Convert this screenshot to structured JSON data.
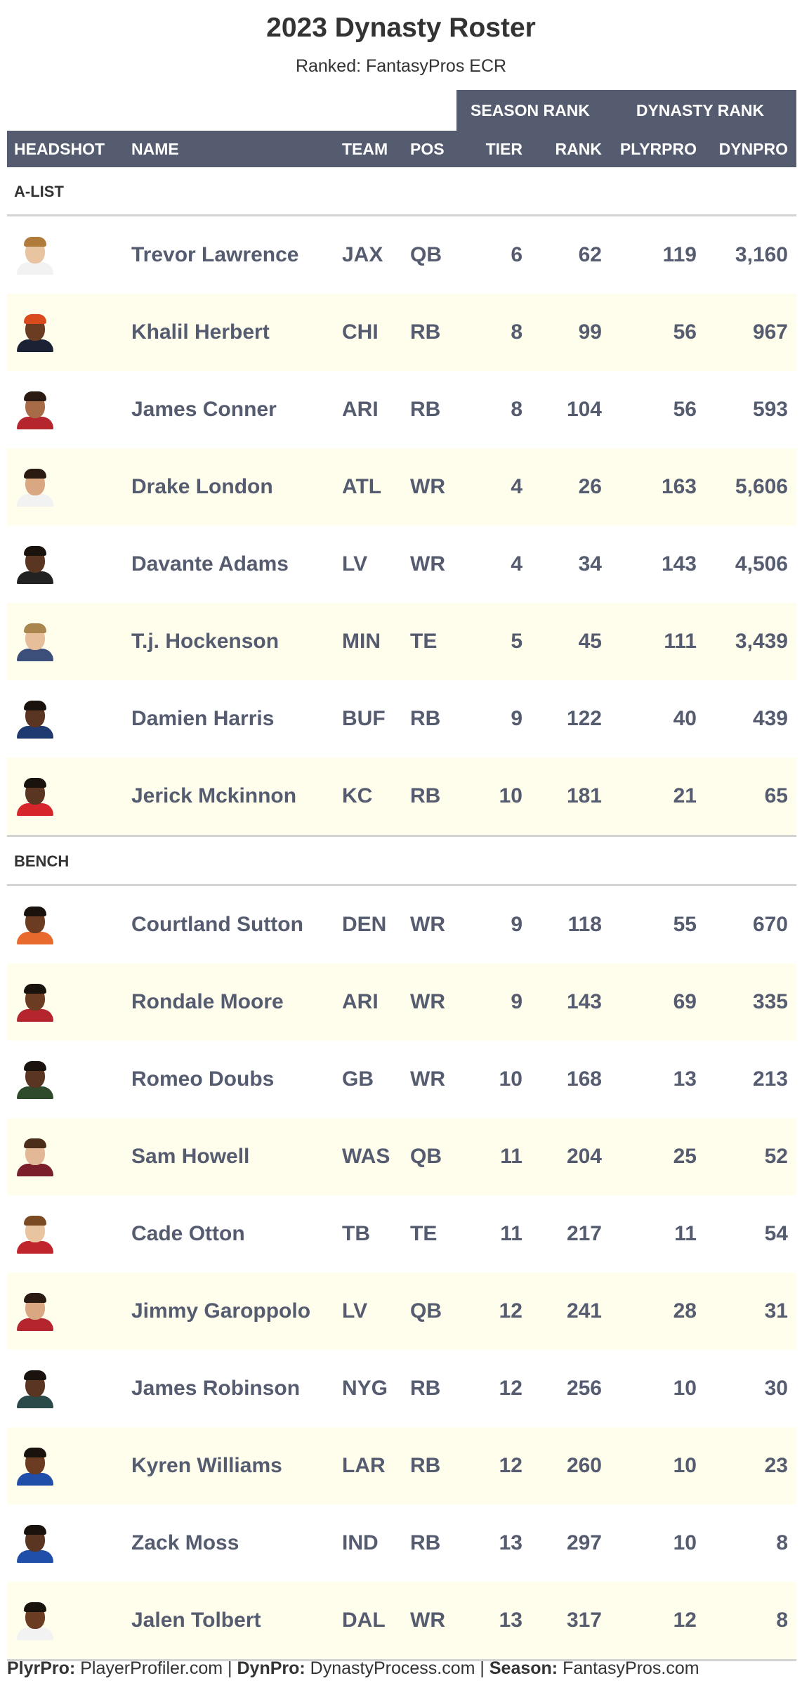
{
  "title": "2023 Dynasty Roster",
  "subtitle": "Ranked: FantasyPros ECR",
  "spanners": {
    "season": "SEASON RANK",
    "dynasty": "DYNASTY RANK"
  },
  "columns": {
    "headshot": "HEADSHOT",
    "name": "NAME",
    "team": "TEAM",
    "pos": "POS",
    "tier": "TIER",
    "rank": "RANK",
    "plyrpro": "PLYRPRO",
    "dynpro": "DYNPRO"
  },
  "groups": [
    {
      "label": "A-LIST",
      "rows": [
        {
          "name": "Trevor Lawrence",
          "team": "JAX",
          "pos": "QB",
          "tier": "6",
          "rank": "62",
          "plyrpro": "119",
          "dynpro": "3,160",
          "skin": "#e8c4a0",
          "hair": "#b07a3a",
          "jersey": "#f2f2f2"
        },
        {
          "name": "Khalil Herbert",
          "team": "CHI",
          "pos": "RB",
          "tier": "8",
          "rank": "99",
          "plyrpro": "56",
          "dynpro": "967",
          "skin": "#6b3b22",
          "hair": "#d94a1c",
          "jersey": "#1b2233"
        },
        {
          "name": "James Conner",
          "team": "ARI",
          "pos": "RB",
          "tier": "8",
          "rank": "104",
          "plyrpro": "56",
          "dynpro": "593",
          "skin": "#a86b48",
          "hair": "#2a1a12",
          "jersey": "#b5252e"
        },
        {
          "name": "Drake London",
          "team": "ATL",
          "pos": "WR",
          "tier": "4",
          "rank": "26",
          "plyrpro": "163",
          "dynpro": "5,606",
          "skin": "#d9a883",
          "hair": "#2a1a12",
          "jersey": "#f2f2f2"
        },
        {
          "name": "Davante Adams",
          "team": "LV",
          "pos": "WR",
          "tier": "4",
          "rank": "34",
          "plyrpro": "143",
          "dynpro": "4,506",
          "skin": "#5a3522",
          "hair": "#1a120c",
          "jersey": "#222222"
        },
        {
          "name": "T.j. Hockenson",
          "team": "MIN",
          "pos": "TE",
          "tier": "5",
          "rank": "45",
          "plyrpro": "111",
          "dynpro": "3,439",
          "skin": "#e6bf9a",
          "hair": "#a8864e",
          "jersey": "#3b4f7a"
        },
        {
          "name": "Damien Harris",
          "team": "BUF",
          "pos": "RB",
          "tier": "9",
          "rank": "122",
          "plyrpro": "40",
          "dynpro": "439",
          "skin": "#5a3522",
          "hair": "#1a120c",
          "jersey": "#1f3a6e"
        },
        {
          "name": "Jerick Mckinnon",
          "team": "KC",
          "pos": "RB",
          "tier": "10",
          "rank": "181",
          "plyrpro": "21",
          "dynpro": "65",
          "skin": "#5a3522",
          "hair": "#1a120c",
          "jersey": "#d6262c"
        }
      ]
    },
    {
      "label": "BENCH",
      "rows": [
        {
          "name": "Courtland Sutton",
          "team": "DEN",
          "pos": "WR",
          "tier": "9",
          "rank": "118",
          "plyrpro": "55",
          "dynpro": "670",
          "skin": "#6b3b22",
          "hair": "#1a120c",
          "jersey": "#e86a2c"
        },
        {
          "name": "Rondale Moore",
          "team": "ARI",
          "pos": "WR",
          "tier": "9",
          "rank": "143",
          "plyrpro": "69",
          "dynpro": "335",
          "skin": "#6b3b22",
          "hair": "#1a120c",
          "jersey": "#b5252e"
        },
        {
          "name": "Romeo Doubs",
          "team": "GB",
          "pos": "WR",
          "tier": "10",
          "rank": "168",
          "plyrpro": "13",
          "dynpro": "213",
          "skin": "#5a3522",
          "hair": "#1a120c",
          "jersey": "#2e4a2a"
        },
        {
          "name": "Sam Howell",
          "team": "WAS",
          "pos": "QB",
          "tier": "11",
          "rank": "204",
          "plyrpro": "25",
          "dynpro": "52",
          "skin": "#e2b896",
          "hair": "#4a2e1a",
          "jersey": "#7a1f2a"
        },
        {
          "name": "Cade Otton",
          "team": "TB",
          "pos": "TE",
          "tier": "11",
          "rank": "217",
          "plyrpro": "11",
          "dynpro": "54",
          "skin": "#e8c4a0",
          "hair": "#7a4a22",
          "jersey": "#c0242c"
        },
        {
          "name": "Jimmy Garoppolo",
          "team": "LV",
          "pos": "QB",
          "tier": "12",
          "rank": "241",
          "plyrpro": "28",
          "dynpro": "31",
          "skin": "#d9a883",
          "hair": "#2a1a12",
          "jersey": "#b5252e"
        },
        {
          "name": "James Robinson",
          "team": "NYG",
          "pos": "RB",
          "tier": "12",
          "rank": "256",
          "plyrpro": "10",
          "dynpro": "30",
          "skin": "#5a3522",
          "hair": "#1a120c",
          "jersey": "#2a4a4a"
        },
        {
          "name": "Kyren Williams",
          "team": "LAR",
          "pos": "RB",
          "tier": "12",
          "rank": "260",
          "plyrpro": "10",
          "dynpro": "23",
          "skin": "#6b3b22",
          "hair": "#1a120c",
          "jersey": "#1f4fa8"
        },
        {
          "name": "Zack Moss",
          "team": "IND",
          "pos": "RB",
          "tier": "13",
          "rank": "297",
          "plyrpro": "10",
          "dynpro": "8",
          "skin": "#5a3522",
          "hair": "#1a120c",
          "jersey": "#1f4fa8"
        },
        {
          "name": "Jalen Tolbert",
          "team": "DAL",
          "pos": "WR",
          "tier": "13",
          "rank": "317",
          "plyrpro": "12",
          "dynpro": "8",
          "skin": "#6b3b22",
          "hair": "#1a120c",
          "jersey": "#f2f2f2"
        }
      ]
    }
  ],
  "footer": {
    "plyr_label": "PlyrPro:",
    "plyr_value": "PlayerProfiler.com",
    "sep": "|",
    "dyn_label": "DynPro:",
    "dyn_value": "DynastyProcess.com",
    "season_label": "Season:",
    "season_value": "FantasyPros.com"
  }
}
